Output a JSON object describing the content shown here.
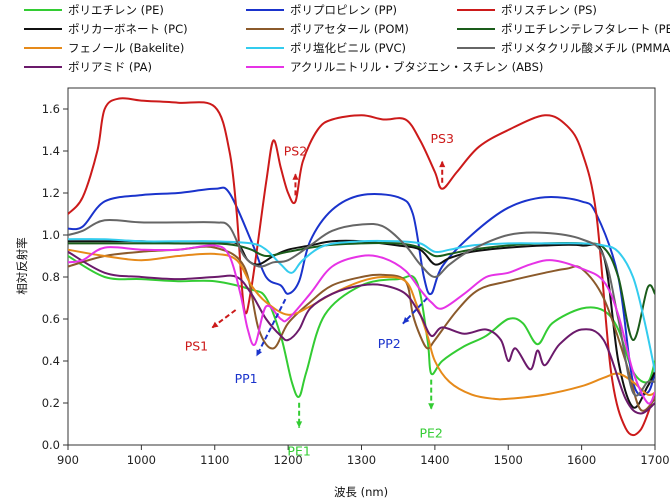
{
  "chart_data": {
    "type": "line",
    "title": "",
    "xlabel": "波長 (nm)",
    "ylabel": "相対反射率",
    "xlim": [
      900,
      1700
    ],
    "ylim": [
      0.0,
      1.7
    ],
    "xticks": [
      900,
      1000,
      1100,
      1200,
      1300,
      1400,
      1500,
      1600,
      1700
    ],
    "yticks": [
      0.0,
      0.2,
      0.4,
      0.6,
      0.8,
      1.0,
      1.2,
      1.4,
      1.6
    ],
    "grid": false,
    "legend_position": "top",
    "series": [
      {
        "name": "ポリエチレン (PE)",
        "color": "#33cc33",
        "x": [
          900,
          950,
          1000,
          1050,
          1100,
          1150,
          1170,
          1190,
          1205,
          1215,
          1225,
          1250,
          1300,
          1350,
          1375,
          1390,
          1395,
          1410,
          1440,
          1470,
          1500,
          1520,
          1540,
          1560,
          1600,
          1630,
          1650,
          1670,
          1690,
          1700
        ],
        "y": [
          0.9,
          0.8,
          0.79,
          0.78,
          0.78,
          0.74,
          0.7,
          0.52,
          0.3,
          0.23,
          0.35,
          0.62,
          0.76,
          0.79,
          0.78,
          0.5,
          0.34,
          0.4,
          0.47,
          0.52,
          0.6,
          0.58,
          0.48,
          0.58,
          0.65,
          0.64,
          0.55,
          0.35,
          0.3,
          0.4
        ]
      },
      {
        "name": "ポリプロピレン (PP)",
        "color": "#1a33cc",
        "x": [
          900,
          920,
          950,
          1000,
          1050,
          1100,
          1120,
          1150,
          1170,
          1190,
          1200,
          1215,
          1230,
          1260,
          1300,
          1350,
          1370,
          1385,
          1395,
          1410,
          1450,
          1500,
          1550,
          1600,
          1620,
          1650,
          1670,
          1690,
          1700
        ],
        "y": [
          1.03,
          1.04,
          1.16,
          1.19,
          1.2,
          1.22,
          1.2,
          0.97,
          0.8,
          0.76,
          0.72,
          0.78,
          0.97,
          1.12,
          1.19,
          1.18,
          1.1,
          0.8,
          0.72,
          0.85,
          1.0,
          1.13,
          1.18,
          1.16,
          1.1,
          0.8,
          0.3,
          0.25,
          0.35
        ]
      },
      {
        "name": "ポリスチレン (PS)",
        "color": "#cc1a1a",
        "x": [
          900,
          920,
          940,
          950,
          970,
          1000,
          1050,
          1100,
          1120,
          1130,
          1140,
          1150,
          1170,
          1180,
          1190,
          1200,
          1210,
          1220,
          1240,
          1260,
          1300,
          1330,
          1360,
          1380,
          1400,
          1410,
          1430,
          1460,
          1500,
          1550,
          1580,
          1600,
          1620,
          1640,
          1660,
          1680,
          1700
        ],
        "y": [
          1.1,
          1.18,
          1.4,
          1.6,
          1.65,
          1.64,
          1.63,
          1.61,
          1.4,
          1.1,
          0.65,
          0.75,
          1.25,
          1.45,
          1.32,
          1.2,
          1.16,
          1.35,
          1.5,
          1.55,
          1.57,
          1.55,
          1.55,
          1.45,
          1.3,
          1.22,
          1.3,
          1.42,
          1.5,
          1.57,
          1.52,
          1.4,
          1.1,
          0.35,
          0.08,
          0.07,
          0.25
        ]
      },
      {
        "name": "ポリカーボネート (PC)",
        "color": "#111111",
        "x": [
          900,
          950,
          1000,
          1050,
          1100,
          1130,
          1145,
          1160,
          1180,
          1200,
          1230,
          1260,
          1300,
          1350,
          1380,
          1400,
          1420,
          1450,
          1500,
          1550,
          1600,
          1630,
          1650,
          1670,
          1690,
          1700
        ],
        "y": [
          0.97,
          0.97,
          0.97,
          0.96,
          0.96,
          0.96,
          0.88,
          0.86,
          0.9,
          0.93,
          0.95,
          0.97,
          0.97,
          0.95,
          0.93,
          0.86,
          0.89,
          0.92,
          0.94,
          0.95,
          0.95,
          0.9,
          0.4,
          0.18,
          0.28,
          0.35
        ]
      },
      {
        "name": "ポリアセタール (POM)",
        "color": "#8b5a2b",
        "x": [
          900,
          950,
          1000,
          1050,
          1100,
          1140,
          1160,
          1180,
          1200,
          1230,
          1260,
          1300,
          1330,
          1360,
          1370,
          1380,
          1390,
          1400,
          1430,
          1460,
          1500,
          1550,
          1580,
          1600,
          1630,
          1660,
          1680,
          1700
        ],
        "y": [
          0.85,
          0.9,
          0.92,
          0.93,
          0.94,
          0.85,
          0.55,
          0.46,
          0.58,
          0.68,
          0.76,
          0.8,
          0.81,
          0.78,
          0.62,
          0.52,
          0.46,
          0.5,
          0.64,
          0.74,
          0.78,
          0.82,
          0.84,
          0.84,
          0.7,
          0.4,
          0.17,
          0.22
        ]
      },
      {
        "name": "ポリエチレンテレフタレート (PET)",
        "color": "#1a5c1a",
        "x": [
          900,
          950,
          1000,
          1050,
          1100,
          1130,
          1150,
          1170,
          1200,
          1250,
          1300,
          1350,
          1380,
          1400,
          1420,
          1450,
          1500,
          1550,
          1600,
          1630,
          1650,
          1670,
          1690,
          1700
        ],
        "y": [
          0.96,
          0.96,
          0.96,
          0.96,
          0.96,
          0.95,
          0.93,
          0.9,
          0.92,
          0.95,
          0.96,
          0.96,
          0.94,
          0.9,
          0.91,
          0.93,
          0.95,
          0.96,
          0.96,
          0.94,
          0.8,
          0.5,
          0.75,
          0.72
        ]
      },
      {
        "name": "フェノール (Bakelite)",
        "color": "#e68a1a",
        "x": [
          900,
          950,
          1000,
          1050,
          1100,
          1130,
          1150,
          1170,
          1200,
          1230,
          1260,
          1300,
          1330,
          1360,
          1375,
          1390,
          1400,
          1420,
          1450,
          1480,
          1500,
          1550,
          1600,
          1630,
          1650,
          1670,
          1690,
          1700
        ],
        "y": [
          0.93,
          0.9,
          0.88,
          0.9,
          0.91,
          0.88,
          0.76,
          0.68,
          0.62,
          0.66,
          0.72,
          0.78,
          0.8,
          0.78,
          0.67,
          0.52,
          0.4,
          0.3,
          0.24,
          0.22,
          0.22,
          0.24,
          0.28,
          0.32,
          0.34,
          0.3,
          0.24,
          0.25
        ]
      },
      {
        "name": "ポリ塩化ビニル (PVC)",
        "color": "#33ccee",
        "x": [
          900,
          950,
          1000,
          1050,
          1100,
          1150,
          1170,
          1190,
          1205,
          1220,
          1250,
          1300,
          1350,
          1380,
          1400,
          1420,
          1450,
          1500,
          1550,
          1600,
          1630,
          1650,
          1670,
          1685,
          1700
        ],
        "y": [
          0.98,
          0.98,
          0.97,
          0.97,
          0.97,
          0.96,
          0.93,
          0.86,
          0.82,
          0.88,
          0.95,
          0.97,
          0.97,
          0.96,
          0.92,
          0.93,
          0.95,
          0.96,
          0.96,
          0.96,
          0.95,
          0.92,
          0.8,
          0.6,
          0.35
        ]
      },
      {
        "name": "ポリメタクリル酸メチル (PMMA)",
        "color": "#666666",
        "x": [
          900,
          920,
          950,
          1000,
          1050,
          1100,
          1120,
          1140,
          1160,
          1180,
          1200,
          1230,
          1260,
          1300,
          1330,
          1360,
          1380,
          1400,
          1420,
          1450,
          1500,
          1550,
          1600,
          1630,
          1650,
          1670,
          1690,
          1700
        ],
        "y": [
          1.0,
          1.02,
          1.07,
          1.06,
          1.06,
          1.06,
          1.04,
          0.9,
          0.85,
          0.87,
          0.88,
          0.95,
          1.02,
          1.05,
          1.04,
          0.95,
          0.86,
          0.8,
          0.86,
          0.93,
          1.0,
          1.01,
          0.98,
          0.9,
          0.6,
          0.25,
          0.3,
          0.3
        ]
      },
      {
        "name": "ポリアミド (PA)",
        "color": "#6b1a6b",
        "x": [
          900,
          950,
          1000,
          1050,
          1100,
          1130,
          1150,
          1170,
          1190,
          1200,
          1215,
          1230,
          1260,
          1300,
          1330,
          1360,
          1380,
          1395,
          1410,
          1440,
          1470,
          1490,
          1500,
          1510,
          1530,
          1540,
          1550,
          1570,
          1600,
          1630,
          1660,
          1680,
          1700
        ],
        "y": [
          0.92,
          0.82,
          0.8,
          0.79,
          0.8,
          0.8,
          0.72,
          0.6,
          0.52,
          0.5,
          0.55,
          0.65,
          0.72,
          0.76,
          0.76,
          0.72,
          0.62,
          0.52,
          0.56,
          0.53,
          0.55,
          0.5,
          0.4,
          0.46,
          0.36,
          0.45,
          0.38,
          0.48,
          0.55,
          0.5,
          0.22,
          0.15,
          0.2
        ]
      },
      {
        "name": "アクリルニトリル・ブタジエン・スチレン (ABS)",
        "color": "#e633e6",
        "x": [
          900,
          920,
          950,
          1000,
          1050,
          1100,
          1120,
          1135,
          1145,
          1155,
          1170,
          1190,
          1200,
          1230,
          1260,
          1300,
          1330,
          1360,
          1380,
          1395,
          1410,
          1440,
          1470,
          1500,
          1530,
          1560,
          1600,
          1630,
          1650,
          1670,
          1690,
          1700
        ],
        "y": [
          0.87,
          0.88,
          0.94,
          0.93,
          0.93,
          0.95,
          0.9,
          0.72,
          0.55,
          0.48,
          0.66,
          0.6,
          0.6,
          0.72,
          0.85,
          0.9,
          0.89,
          0.83,
          0.74,
          0.68,
          0.65,
          0.72,
          0.8,
          0.82,
          0.86,
          0.88,
          0.84,
          0.78,
          0.62,
          0.35,
          0.2,
          0.25
        ]
      }
    ],
    "annotations": [
      {
        "text": "PS1",
        "color": "#cc1a1a",
        "at_x": 1135,
        "at_y": 0.66
      },
      {
        "text": "PS2",
        "color": "#cc1a1a",
        "at_x": 1210,
        "at_y": 1.16
      },
      {
        "text": "PS3",
        "color": "#cc1a1a",
        "at_x": 1410,
        "at_y": 1.22
      },
      {
        "text": "PP1",
        "color": "#1a33cc",
        "at_x": 1200,
        "at_y": 0.72
      },
      {
        "text": "PP2",
        "color": "#1a33cc",
        "at_x": 1395,
        "at_y": 0.72
      },
      {
        "text": "PE1",
        "color": "#33cc33",
        "at_x": 1215,
        "at_y": 0.23
      },
      {
        "text": "PE2",
        "color": "#33cc33",
        "at_x": 1395,
        "at_y": 0.34
      }
    ]
  }
}
